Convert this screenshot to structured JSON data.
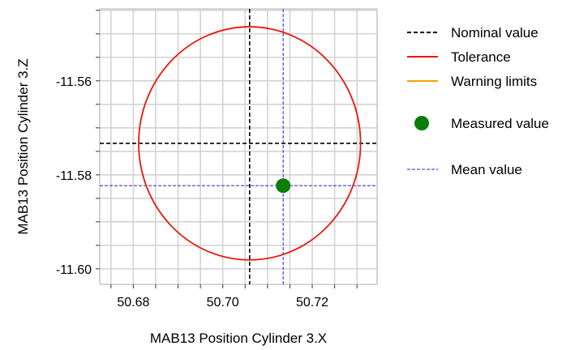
{
  "chart_data": {
    "type": "scatter",
    "xlabel": "MAB13 Position Cylinder 3.X",
    "ylabel": "MAB13 Position Cylinder 3.Z",
    "xlim": [
      50.6725,
      50.7345
    ],
    "ylim": [
      -11.6033,
      -11.5447
    ],
    "xticks": [
      50.68,
      50.7,
      50.72
    ],
    "xtick_labels": [
      "50.68",
      "50.70",
      "50.72"
    ],
    "yticks": [
      -11.56,
      -11.58,
      -11.6
    ],
    "ytick_labels": [
      "-11.56",
      "-11.58",
      "-11.60"
    ],
    "grid": true,
    "nominal": {
      "x": 50.706,
      "y": -11.5733
    },
    "tolerance_radius": 0.0248,
    "measured": {
      "x": 50.7135,
      "y": -11.5823
    },
    "mean": {
      "x": 50.7135,
      "y": -11.5823
    },
    "legend_position": "right",
    "legend": [
      {
        "key": "nominal",
        "label": "Nominal value",
        "style": "dashed-line",
        "color": "#000000"
      },
      {
        "key": "tolerance",
        "label": "Tolerance",
        "style": "line",
        "color": "#e8180c"
      },
      {
        "key": "warning",
        "label": "Warning limits",
        "style": "line",
        "color": "#f5a000"
      },
      {
        "key": "measured",
        "label": "Measured value",
        "style": "dot",
        "color": "#0a7d0a"
      },
      {
        "key": "mean",
        "label": "Mean value",
        "style": "dashed-line",
        "color": "#1f1fd6"
      }
    ],
    "colors": {
      "nominal": "#000000",
      "tolerance": "#e8180c",
      "measured": "#0a7d0a",
      "mean": "#1f1fd6",
      "grid": "#d3d3d3",
      "axis": "#c8c8c8"
    }
  }
}
